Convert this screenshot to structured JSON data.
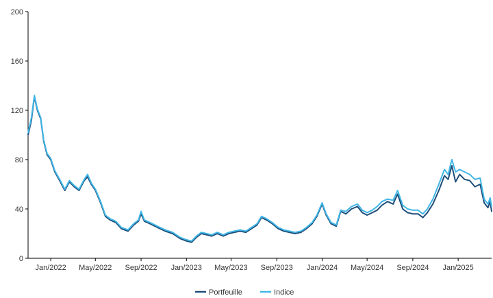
{
  "chart_data": {
    "type": "line",
    "title": "",
    "xlabel": "",
    "ylabel": "",
    "ylim": [
      0,
      200
    ],
    "yticks": [
      0,
      40,
      80,
      120,
      160,
      200
    ],
    "x_range": [
      "2021-11-01",
      "2025-04-01"
    ],
    "xticks": [
      {
        "date": "2022-01-01",
        "label": "Jan/2022"
      },
      {
        "date": "2022-05-01",
        "label": "May/2022"
      },
      {
        "date": "2022-09-01",
        "label": "Sep/2022"
      },
      {
        "date": "2023-01-01",
        "label": "Jan/2023"
      },
      {
        "date": "2023-05-01",
        "label": "May/2023"
      },
      {
        "date": "2023-09-01",
        "label": "Sep/2023"
      },
      {
        "date": "2024-01-01",
        "label": "Jan/2024"
      },
      {
        "date": "2024-05-01",
        "label": "May/2024"
      },
      {
        "date": "2024-09-01",
        "label": "Sep/2024"
      },
      {
        "date": "2025-01-01",
        "label": "Jan/2025"
      }
    ],
    "grid": false,
    "legend_position": "bottom-center",
    "series": [
      {
        "name": "Portfeuille",
        "color": "#1f4e79",
        "points": [
          [
            "2021-11-01",
            100
          ],
          [
            "2021-11-10",
            112
          ],
          [
            "2021-11-18",
            131
          ],
          [
            "2021-11-26",
            120
          ],
          [
            "2021-12-05",
            113
          ],
          [
            "2021-12-13",
            95
          ],
          [
            "2021-12-22",
            84
          ],
          [
            "2022-01-01",
            80
          ],
          [
            "2022-01-12",
            70
          ],
          [
            "2022-01-25",
            63
          ],
          [
            "2022-02-08",
            55
          ],
          [
            "2022-02-20",
            62
          ],
          [
            "2022-03-05",
            58
          ],
          [
            "2022-03-18",
            55
          ],
          [
            "2022-04-01",
            63
          ],
          [
            "2022-04-10",
            66
          ],
          [
            "2022-04-20",
            60
          ],
          [
            "2022-05-01",
            55
          ],
          [
            "2022-05-15",
            45
          ],
          [
            "2022-05-28",
            34
          ],
          [
            "2022-06-10",
            31
          ],
          [
            "2022-06-25",
            29
          ],
          [
            "2022-07-10",
            24
          ],
          [
            "2022-07-28",
            22
          ],
          [
            "2022-08-12",
            27
          ],
          [
            "2022-08-25",
            30
          ],
          [
            "2022-09-01",
            36
          ],
          [
            "2022-09-10",
            30
          ],
          [
            "2022-09-25",
            28
          ],
          [
            "2022-10-15",
            25
          ],
          [
            "2022-11-05",
            22
          ],
          [
            "2022-11-25",
            20
          ],
          [
            "2022-12-15",
            16
          ],
          [
            "2023-01-01",
            14
          ],
          [
            "2023-01-15",
            13
          ],
          [
            "2023-01-28",
            17
          ],
          [
            "2023-02-10",
            20
          ],
          [
            "2023-02-25",
            19
          ],
          [
            "2023-03-10",
            18
          ],
          [
            "2023-03-25",
            20
          ],
          [
            "2023-04-10",
            18
          ],
          [
            "2023-04-25",
            20
          ],
          [
            "2023-05-10",
            21
          ],
          [
            "2023-05-25",
            22
          ],
          [
            "2023-06-10",
            21
          ],
          [
            "2023-06-25",
            24
          ],
          [
            "2023-07-10",
            27
          ],
          [
            "2023-07-22",
            33
          ],
          [
            "2023-08-05",
            31
          ],
          [
            "2023-08-20",
            28
          ],
          [
            "2023-09-05",
            24
          ],
          [
            "2023-09-20",
            22
          ],
          [
            "2023-10-05",
            21
          ],
          [
            "2023-10-20",
            20
          ],
          [
            "2023-11-05",
            21
          ],
          [
            "2023-11-20",
            24
          ],
          [
            "2023-12-05",
            28
          ],
          [
            "2023-12-18",
            34
          ],
          [
            "2024-01-01",
            44
          ],
          [
            "2024-01-12",
            35
          ],
          [
            "2024-01-25",
            28
          ],
          [
            "2024-02-08",
            26
          ],
          [
            "2024-02-20",
            38
          ],
          [
            "2024-03-05",
            36
          ],
          [
            "2024-03-20",
            40
          ],
          [
            "2024-04-05",
            42
          ],
          [
            "2024-04-18",
            37
          ],
          [
            "2024-05-01",
            35
          ],
          [
            "2024-05-15",
            37
          ],
          [
            "2024-05-28",
            39
          ],
          [
            "2024-06-10",
            43
          ],
          [
            "2024-06-25",
            46
          ],
          [
            "2024-07-10",
            44
          ],
          [
            "2024-07-22",
            52
          ],
          [
            "2024-08-05",
            40
          ],
          [
            "2024-08-18",
            37
          ],
          [
            "2024-09-01",
            36
          ],
          [
            "2024-09-15",
            36
          ],
          [
            "2024-09-28",
            33
          ],
          [
            "2024-10-10",
            37
          ],
          [
            "2024-10-25",
            44
          ],
          [
            "2024-11-10",
            55
          ],
          [
            "2024-11-25",
            67
          ],
          [
            "2024-12-05",
            64
          ],
          [
            "2024-12-15",
            75
          ],
          [
            "2024-12-25",
            62
          ],
          [
            "2025-01-05",
            68
          ],
          [
            "2025-01-18",
            64
          ],
          [
            "2025-02-01",
            63
          ],
          [
            "2025-02-15",
            58
          ],
          [
            "2025-03-01",
            60
          ],
          [
            "2025-03-12",
            45
          ],
          [
            "2025-03-22",
            41
          ],
          [
            "2025-03-28",
            46
          ],
          [
            "2025-04-01",
            38
          ]
        ]
      },
      {
        "name": "Indice",
        "color": "#41b6e6",
        "points": [
          [
            "2021-11-01",
            102
          ],
          [
            "2021-11-10",
            114
          ],
          [
            "2021-11-18",
            132
          ],
          [
            "2021-11-26",
            121
          ],
          [
            "2021-12-05",
            114
          ],
          [
            "2021-12-13",
            96
          ],
          [
            "2021-12-22",
            85
          ],
          [
            "2022-01-01",
            81
          ],
          [
            "2022-01-12",
            71
          ],
          [
            "2022-01-25",
            64
          ],
          [
            "2022-02-08",
            56
          ],
          [
            "2022-02-20",
            63
          ],
          [
            "2022-03-05",
            59
          ],
          [
            "2022-03-18",
            56
          ],
          [
            "2022-04-01",
            64
          ],
          [
            "2022-04-10",
            68
          ],
          [
            "2022-04-20",
            61
          ],
          [
            "2022-05-01",
            56
          ],
          [
            "2022-05-15",
            46
          ],
          [
            "2022-05-28",
            35
          ],
          [
            "2022-06-10",
            32
          ],
          [
            "2022-06-25",
            30
          ],
          [
            "2022-07-10",
            25
          ],
          [
            "2022-07-28",
            23
          ],
          [
            "2022-08-12",
            28
          ],
          [
            "2022-08-25",
            31
          ],
          [
            "2022-09-01",
            38
          ],
          [
            "2022-09-10",
            31
          ],
          [
            "2022-09-25",
            29
          ],
          [
            "2022-10-15",
            26
          ],
          [
            "2022-11-05",
            23
          ],
          [
            "2022-11-25",
            21
          ],
          [
            "2022-12-15",
            17
          ],
          [
            "2023-01-01",
            15
          ],
          [
            "2023-01-15",
            14
          ],
          [
            "2023-01-28",
            18
          ],
          [
            "2023-02-10",
            21
          ],
          [
            "2023-02-25",
            20
          ],
          [
            "2023-03-10",
            19
          ],
          [
            "2023-03-25",
            21
          ],
          [
            "2023-04-10",
            19
          ],
          [
            "2023-04-25",
            21
          ],
          [
            "2023-05-10",
            22
          ],
          [
            "2023-05-25",
            23
          ],
          [
            "2023-06-10",
            22
          ],
          [
            "2023-06-25",
            25
          ],
          [
            "2023-07-10",
            28
          ],
          [
            "2023-07-22",
            34
          ],
          [
            "2023-08-05",
            32
          ],
          [
            "2023-08-20",
            29
          ],
          [
            "2023-09-05",
            25
          ],
          [
            "2023-09-20",
            23
          ],
          [
            "2023-10-05",
            22
          ],
          [
            "2023-10-20",
            21
          ],
          [
            "2023-11-05",
            22
          ],
          [
            "2023-11-20",
            25
          ],
          [
            "2023-12-05",
            29
          ],
          [
            "2023-12-18",
            35
          ],
          [
            "2024-01-01",
            45
          ],
          [
            "2024-01-12",
            36
          ],
          [
            "2024-01-25",
            29
          ],
          [
            "2024-02-08",
            27
          ],
          [
            "2024-02-20",
            39
          ],
          [
            "2024-03-05",
            38
          ],
          [
            "2024-03-20",
            42
          ],
          [
            "2024-04-05",
            44
          ],
          [
            "2024-04-18",
            39
          ],
          [
            "2024-05-01",
            37
          ],
          [
            "2024-05-15",
            39
          ],
          [
            "2024-05-28",
            42
          ],
          [
            "2024-06-10",
            46
          ],
          [
            "2024-06-25",
            48
          ],
          [
            "2024-07-10",
            47
          ],
          [
            "2024-07-22",
            55
          ],
          [
            "2024-08-05",
            43
          ],
          [
            "2024-08-18",
            40
          ],
          [
            "2024-09-01",
            39
          ],
          [
            "2024-09-15",
            39
          ],
          [
            "2024-09-28",
            36
          ],
          [
            "2024-10-10",
            40
          ],
          [
            "2024-10-25",
            48
          ],
          [
            "2024-11-10",
            60
          ],
          [
            "2024-11-25",
            72
          ],
          [
            "2024-12-05",
            68
          ],
          [
            "2024-12-15",
            80
          ],
          [
            "2024-12-25",
            70
          ],
          [
            "2025-01-05",
            72
          ],
          [
            "2025-01-18",
            70
          ],
          [
            "2025-02-01",
            68
          ],
          [
            "2025-02-15",
            64
          ],
          [
            "2025-03-01",
            65
          ],
          [
            "2025-03-12",
            48
          ],
          [
            "2025-03-22",
            44
          ],
          [
            "2025-03-28",
            49
          ],
          [
            "2025-04-01",
            42
          ]
        ]
      }
    ]
  }
}
